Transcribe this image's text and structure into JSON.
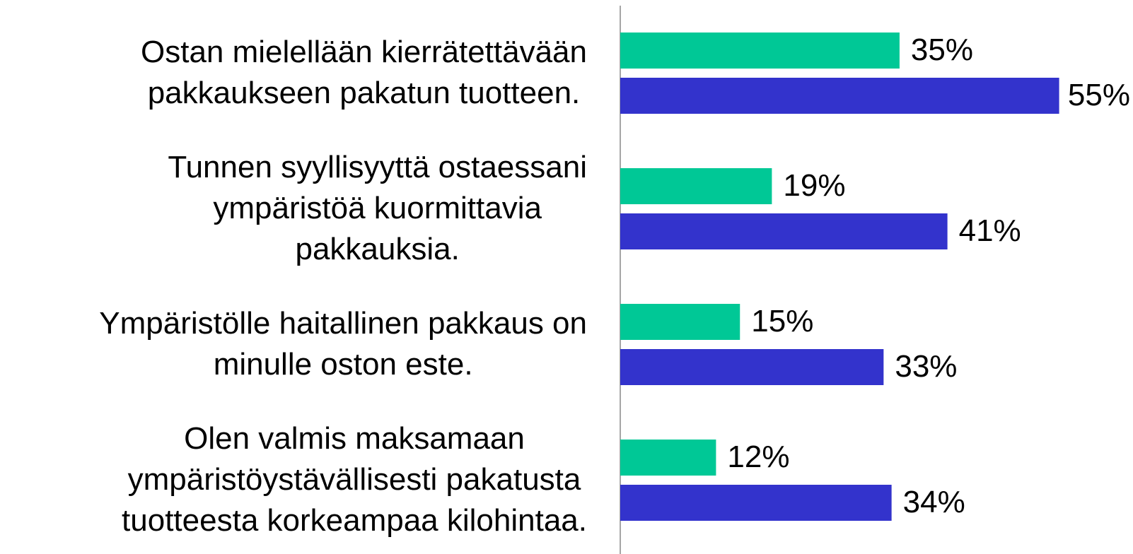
{
  "chart_data": {
    "type": "bar",
    "orientation": "horizontal",
    "categories": [
      "Ostan mielellään kierrätettävään\npakkaukseen pakatun tuotteen.",
      "Tunnen syyllisyyttä ostaessani\nympäristöä kuormittavia\npakkauksia.",
      "Ympäristölle haitallinen pakkaus on\nminulle oston este.",
      "Olen valmis maksamaan\nympäristöystävällisesti pakatusta\ntuotteesta korkeampaa kilohintaa."
    ],
    "series": [
      {
        "color": "#00c896",
        "values": [
          35,
          19,
          15,
          12
        ],
        "value_labels": [
          "35%",
          "19%",
          "15%",
          "12%"
        ]
      },
      {
        "color": "#3333cc",
        "values": [
          55,
          41,
          33,
          34
        ],
        "value_labels": [
          "55%",
          "41%",
          "33%",
          "34%"
        ]
      }
    ],
    "xlim": [
      0,
      60
    ]
  }
}
